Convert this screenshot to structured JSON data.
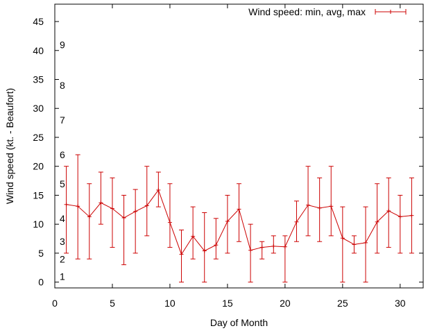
{
  "chart_data": {
    "type": "line",
    "title": "",
    "xlabel": "Day of Month",
    "ylabel": "Wind speed (kt. - Beaufort)",
    "xlim": [
      0,
      32
    ],
    "ylim": [
      -1,
      48
    ],
    "xticks": [
      0,
      5,
      10,
      15,
      20,
      25,
      30
    ],
    "yticks": [
      0,
      5,
      10,
      15,
      20,
      25,
      30,
      35,
      40,
      45
    ],
    "grid": false,
    "legend_position": "top-right",
    "series": [
      {
        "name": "Wind speed: min, avg, max",
        "color": "#cc0000",
        "x": [
          1,
          2,
          3,
          4,
          5,
          6,
          7,
          8,
          9,
          10,
          11,
          12,
          13,
          14,
          15,
          16,
          17,
          18,
          19,
          20,
          21,
          22,
          23,
          24,
          25,
          26,
          27,
          28,
          29,
          30,
          31
        ],
        "avg": [
          13.4,
          13.1,
          11.3,
          13.7,
          12.7,
          11.1,
          12.2,
          13.2,
          15.9,
          10.3,
          4.8,
          7.9,
          5.4,
          6.4,
          10.5,
          12.6,
          5.5,
          6.0,
          6.2,
          6.1,
          10.4,
          13.3,
          12.8,
          13.1,
          7.6,
          6.5,
          6.8,
          10.4,
          12.3,
          11.3,
          11.5
        ],
        "min": [
          5,
          4,
          4,
          10,
          6,
          3,
          5,
          8,
          13,
          6,
          0,
          4,
          0,
          4,
          5,
          7,
          0,
          4,
          5,
          0,
          7,
          8,
          7,
          8,
          0,
          5,
          0,
          5,
          6,
          5,
          5
        ],
        "max": [
          20,
          22,
          17,
          19,
          18,
          15,
          16,
          20,
          19,
          17,
          9,
          13,
          12,
          11,
          15,
          17,
          10,
          7,
          8,
          8,
          14,
          20,
          18,
          20,
          13,
          8,
          13,
          17,
          18,
          15,
          18
        ]
      }
    ],
    "beaufort_labels": [
      {
        "label": "1",
        "y": 1
      },
      {
        "label": "2",
        "y": 4
      },
      {
        "label": "3",
        "y": 7
      },
      {
        "label": "4",
        "y": 11
      },
      {
        "label": "5",
        "y": 17
      },
      {
        "label": "6",
        "y": 22
      },
      {
        "label": "7",
        "y": 28
      },
      {
        "label": "8",
        "y": 34
      },
      {
        "label": "9",
        "y": 41
      }
    ]
  }
}
